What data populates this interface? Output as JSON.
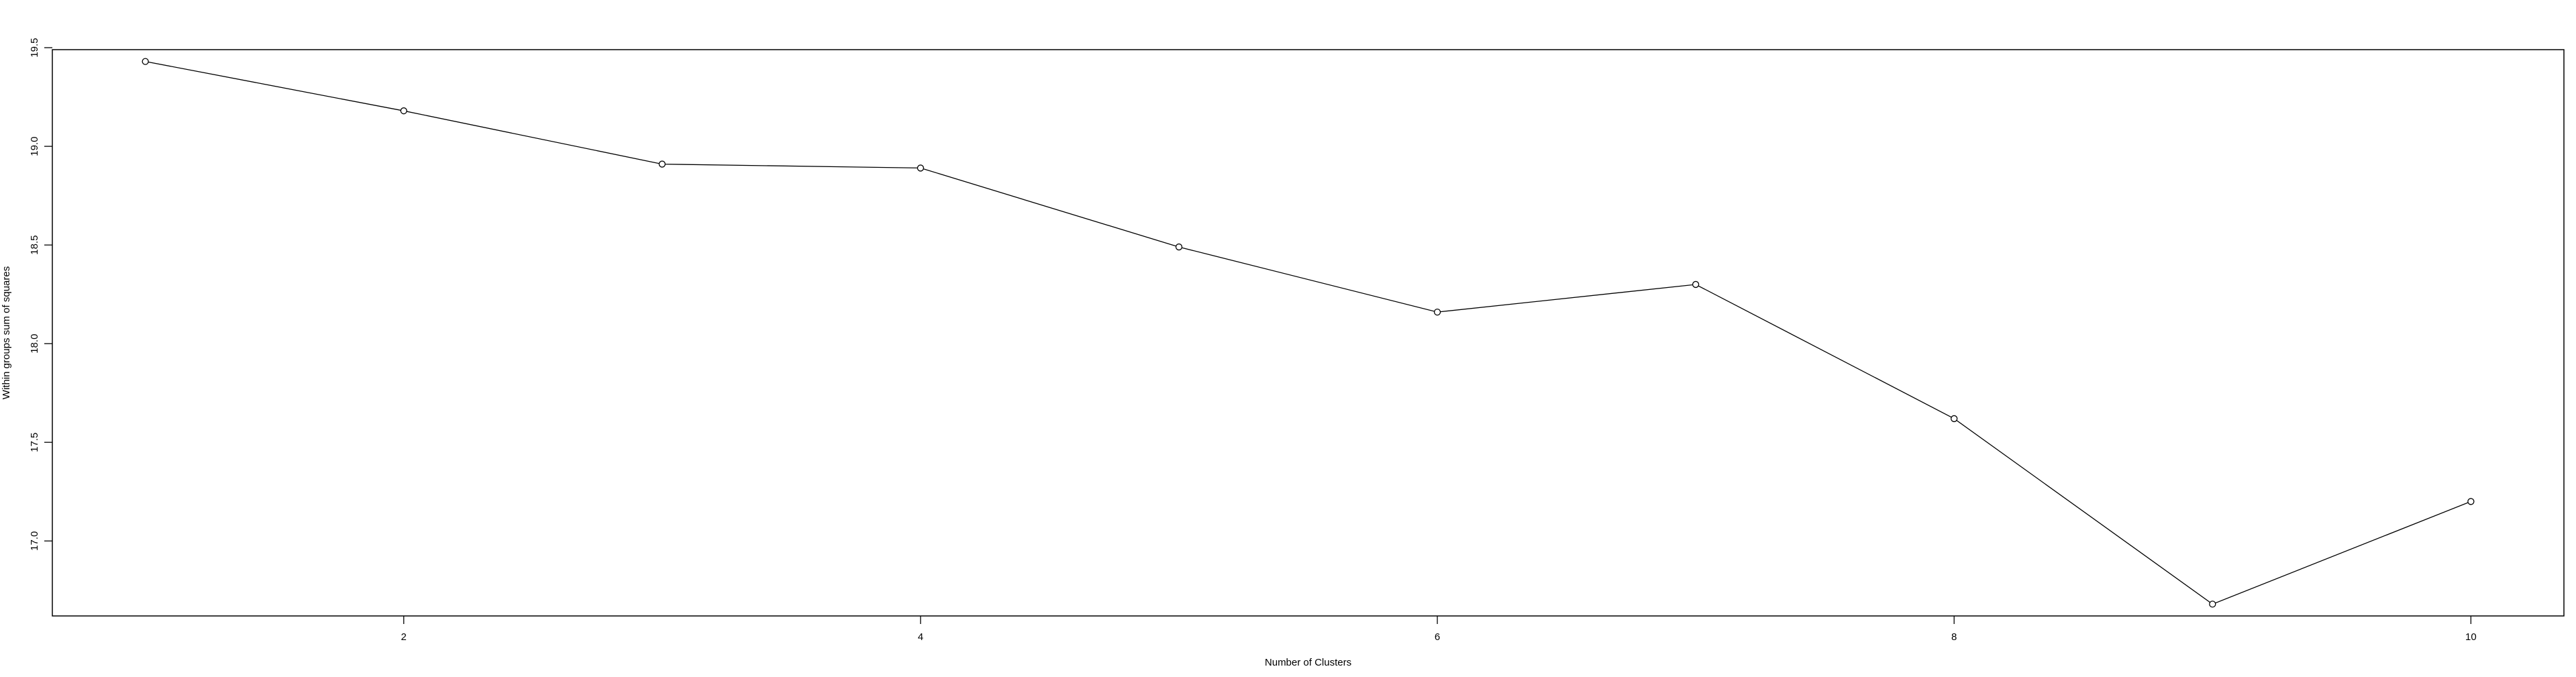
{
  "chart_data": {
    "type": "line",
    "title": "",
    "xlabel": "Number of Clusters",
    "ylabel": "Within groups sum of squares",
    "x": [
      1,
      2,
      3,
      4,
      5,
      6,
      7,
      8,
      9,
      10
    ],
    "series": [
      {
        "values": [
          19.43,
          19.18,
          18.91,
          18.89,
          18.49,
          18.16,
          18.3,
          17.62,
          16.68,
          17.2
        ]
      }
    ],
    "xlim": [
      0.64,
      10.36
    ],
    "ylim": [
      16.62,
      19.49
    ],
    "x_ticks": [
      2,
      4,
      6,
      8,
      10
    ],
    "x_tick_labels": [
      "2",
      "4",
      "6",
      "8",
      "10"
    ],
    "y_ticks": [
      17.0,
      17.5,
      18.0,
      18.5,
      19.0,
      19.5
    ],
    "y_tick_labels": [
      "17.0",
      "17.5",
      "18.0",
      "18.5",
      "19.0",
      "19.5"
    ],
    "grid": false,
    "line_color": "#000000",
    "marker": "open-circle"
  }
}
